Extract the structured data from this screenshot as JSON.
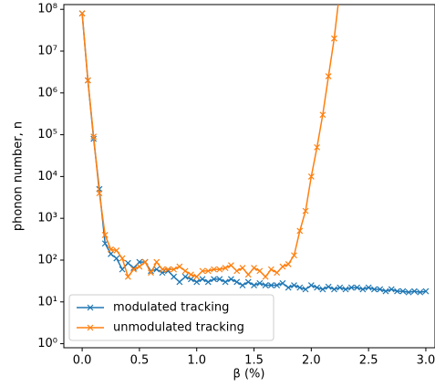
{
  "chart_data": {
    "type": "line",
    "xlabel": "β (%)",
    "ylabel": "phonon number, n",
    "log_y": true,
    "legend_loc": "lower left",
    "xlim": [
      -0.16,
      3.08
    ],
    "ylim": [
      0.8,
      130000000.0
    ],
    "xticks": [
      {
        "value": 0,
        "label": "0.0"
      },
      0.5,
      {
        "value": 1,
        "label": "1.0"
      },
      1.5,
      {
        "value": 2,
        "label": "2.0"
      },
      2.5,
      {
        "value": 3,
        "label": "3.0"
      }
    ],
    "yticks": [
      {
        "value": 1,
        "label": "10⁰"
      },
      {
        "value": 10,
        "label": "10¹"
      },
      {
        "value": 100,
        "label": "10²"
      },
      {
        "value": 1000,
        "label": "10³"
      },
      {
        "value": 10000,
        "label": "10⁴"
      },
      {
        "value": 100000,
        "label": "10⁵"
      },
      {
        "value": 1000000,
        "label": "10⁶"
      },
      {
        "value": 10000000,
        "label": "10⁷"
      },
      {
        "value": 100000000,
        "label": "10⁸"
      }
    ],
    "x": [
      0,
      0.05,
      0.1,
      0.15,
      0.2,
      0.25,
      0.3,
      0.35,
      0.4,
      0.45,
      0.5,
      0.55,
      0.6,
      0.65,
      0.7,
      0.75,
      0.8,
      0.85,
      0.9,
      0.95,
      1.0,
      1.05,
      1.1,
      1.15,
      1.2,
      1.25,
      1.3,
      1.35,
      1.4,
      1.45,
      1.5,
      1.55,
      1.6,
      1.65,
      1.7,
      1.75,
      1.8,
      1.85,
      1.9,
      1.95,
      2.0,
      2.05,
      2.1,
      2.15,
      2.2,
      2.25,
      2.3,
      2.35,
      2.4,
      2.45,
      2.5,
      2.55,
      2.6,
      2.65,
      2.7,
      2.75,
      2.8,
      2.85,
      2.9,
      2.95,
      3.0
    ],
    "series": [
      {
        "name": "modulated tracking",
        "color": "#1f77b4",
        "values": [
          80000000.0,
          2000000.0,
          80000.0,
          5000,
          250,
          140,
          110,
          60,
          85,
          65,
          90,
          90,
          55,
          60,
          50,
          55,
          40,
          30,
          40,
          35,
          30,
          35,
          30,
          35,
          35,
          30,
          35,
          30,
          25,
          30,
          25,
          28,
          25,
          25,
          25,
          28,
          22,
          25,
          22,
          20,
          25,
          22,
          20,
          23,
          20,
          22,
          20,
          22,
          22,
          20,
          22,
          20,
          20,
          18,
          20,
          18,
          18,
          17,
          18,
          17,
          18
        ]
      },
      {
        "name": "unmodulated tracking",
        "color": "#ff7f0e",
        "values": [
          80000000.0,
          2000000.0,
          90000.0,
          4000,
          400,
          180,
          170,
          110,
          40,
          60,
          70,
          90,
          50,
          90,
          60,
          60,
          60,
          70,
          55,
          45,
          40,
          55,
          55,
          60,
          60,
          65,
          75,
          55,
          65,
          45,
          65,
          55,
          40,
          60,
          50,
          70,
          80,
          130,
          500,
          1500,
          10000,
          50000,
          300000,
          2500000,
          20000000,
          300000000,
          null,
          null,
          null,
          null,
          null,
          null,
          null,
          null,
          null,
          null,
          null,
          null,
          null,
          null,
          null
        ]
      }
    ]
  }
}
